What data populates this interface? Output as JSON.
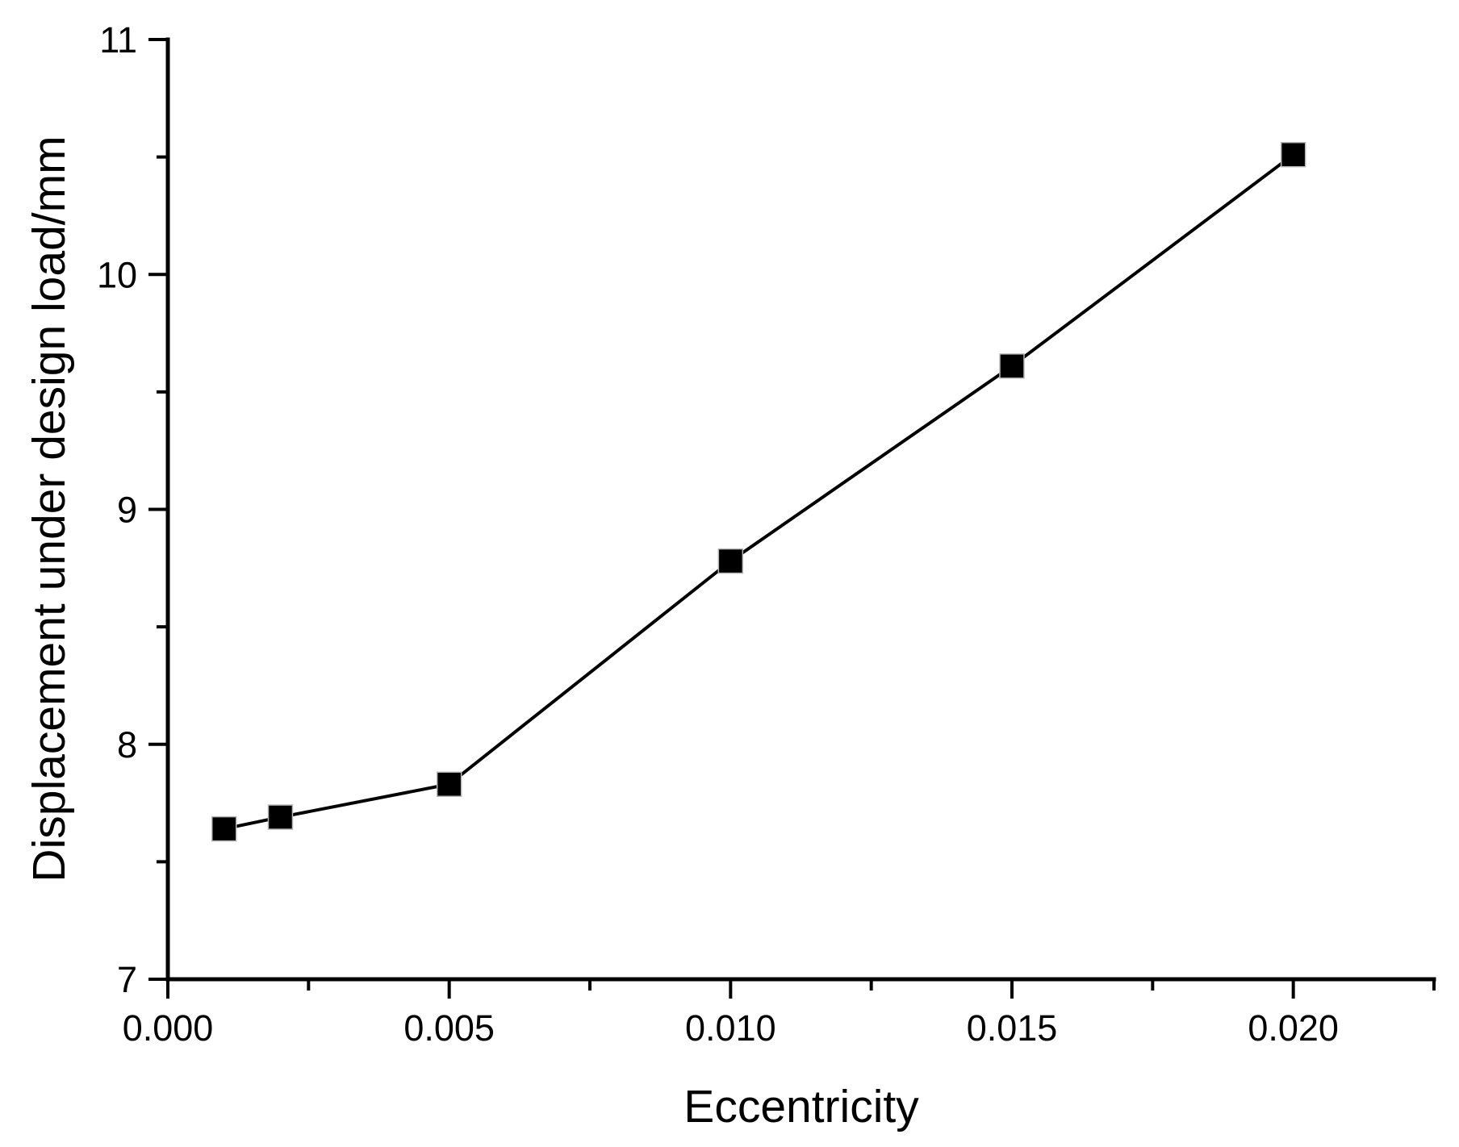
{
  "chart_data": {
    "type": "line",
    "title": "",
    "xlabel": "Eccentricity",
    "ylabel": "Displacement under design load/mm",
    "xlim": [
      0,
      0.0225
    ],
    "ylim": [
      7,
      11
    ],
    "grid": false,
    "legend": "none",
    "marker": "square",
    "line_color": "#000000",
    "marker_color": "#000000",
    "background_color": "#ffffff",
    "x_major_ticks": [
      0,
      0.005,
      0.01,
      0.015,
      0.02
    ],
    "x_major_tick_labels": [
      "0.000",
      "0.005",
      "0.010",
      "0.015",
      "0.020"
    ],
    "x_minor_ticks": [
      0.0025,
      0.0075,
      0.0125,
      0.0175,
      0.0225
    ],
    "y_major_ticks": [
      7,
      8,
      9,
      10,
      11
    ],
    "y_major_tick_labels": [
      "7",
      "8",
      "9",
      "10",
      "11"
    ],
    "y_minor_ticks": [
      7.5,
      8.5,
      9.5,
      10.5
    ],
    "series": [
      {
        "name": "Displacement under design load",
        "x": [
          0.001,
          0.002,
          0.005,
          0.01,
          0.015,
          0.02
        ],
        "y": [
          7.64,
          7.69,
          7.83,
          8.78,
          9.61,
          10.51
        ]
      }
    ]
  }
}
